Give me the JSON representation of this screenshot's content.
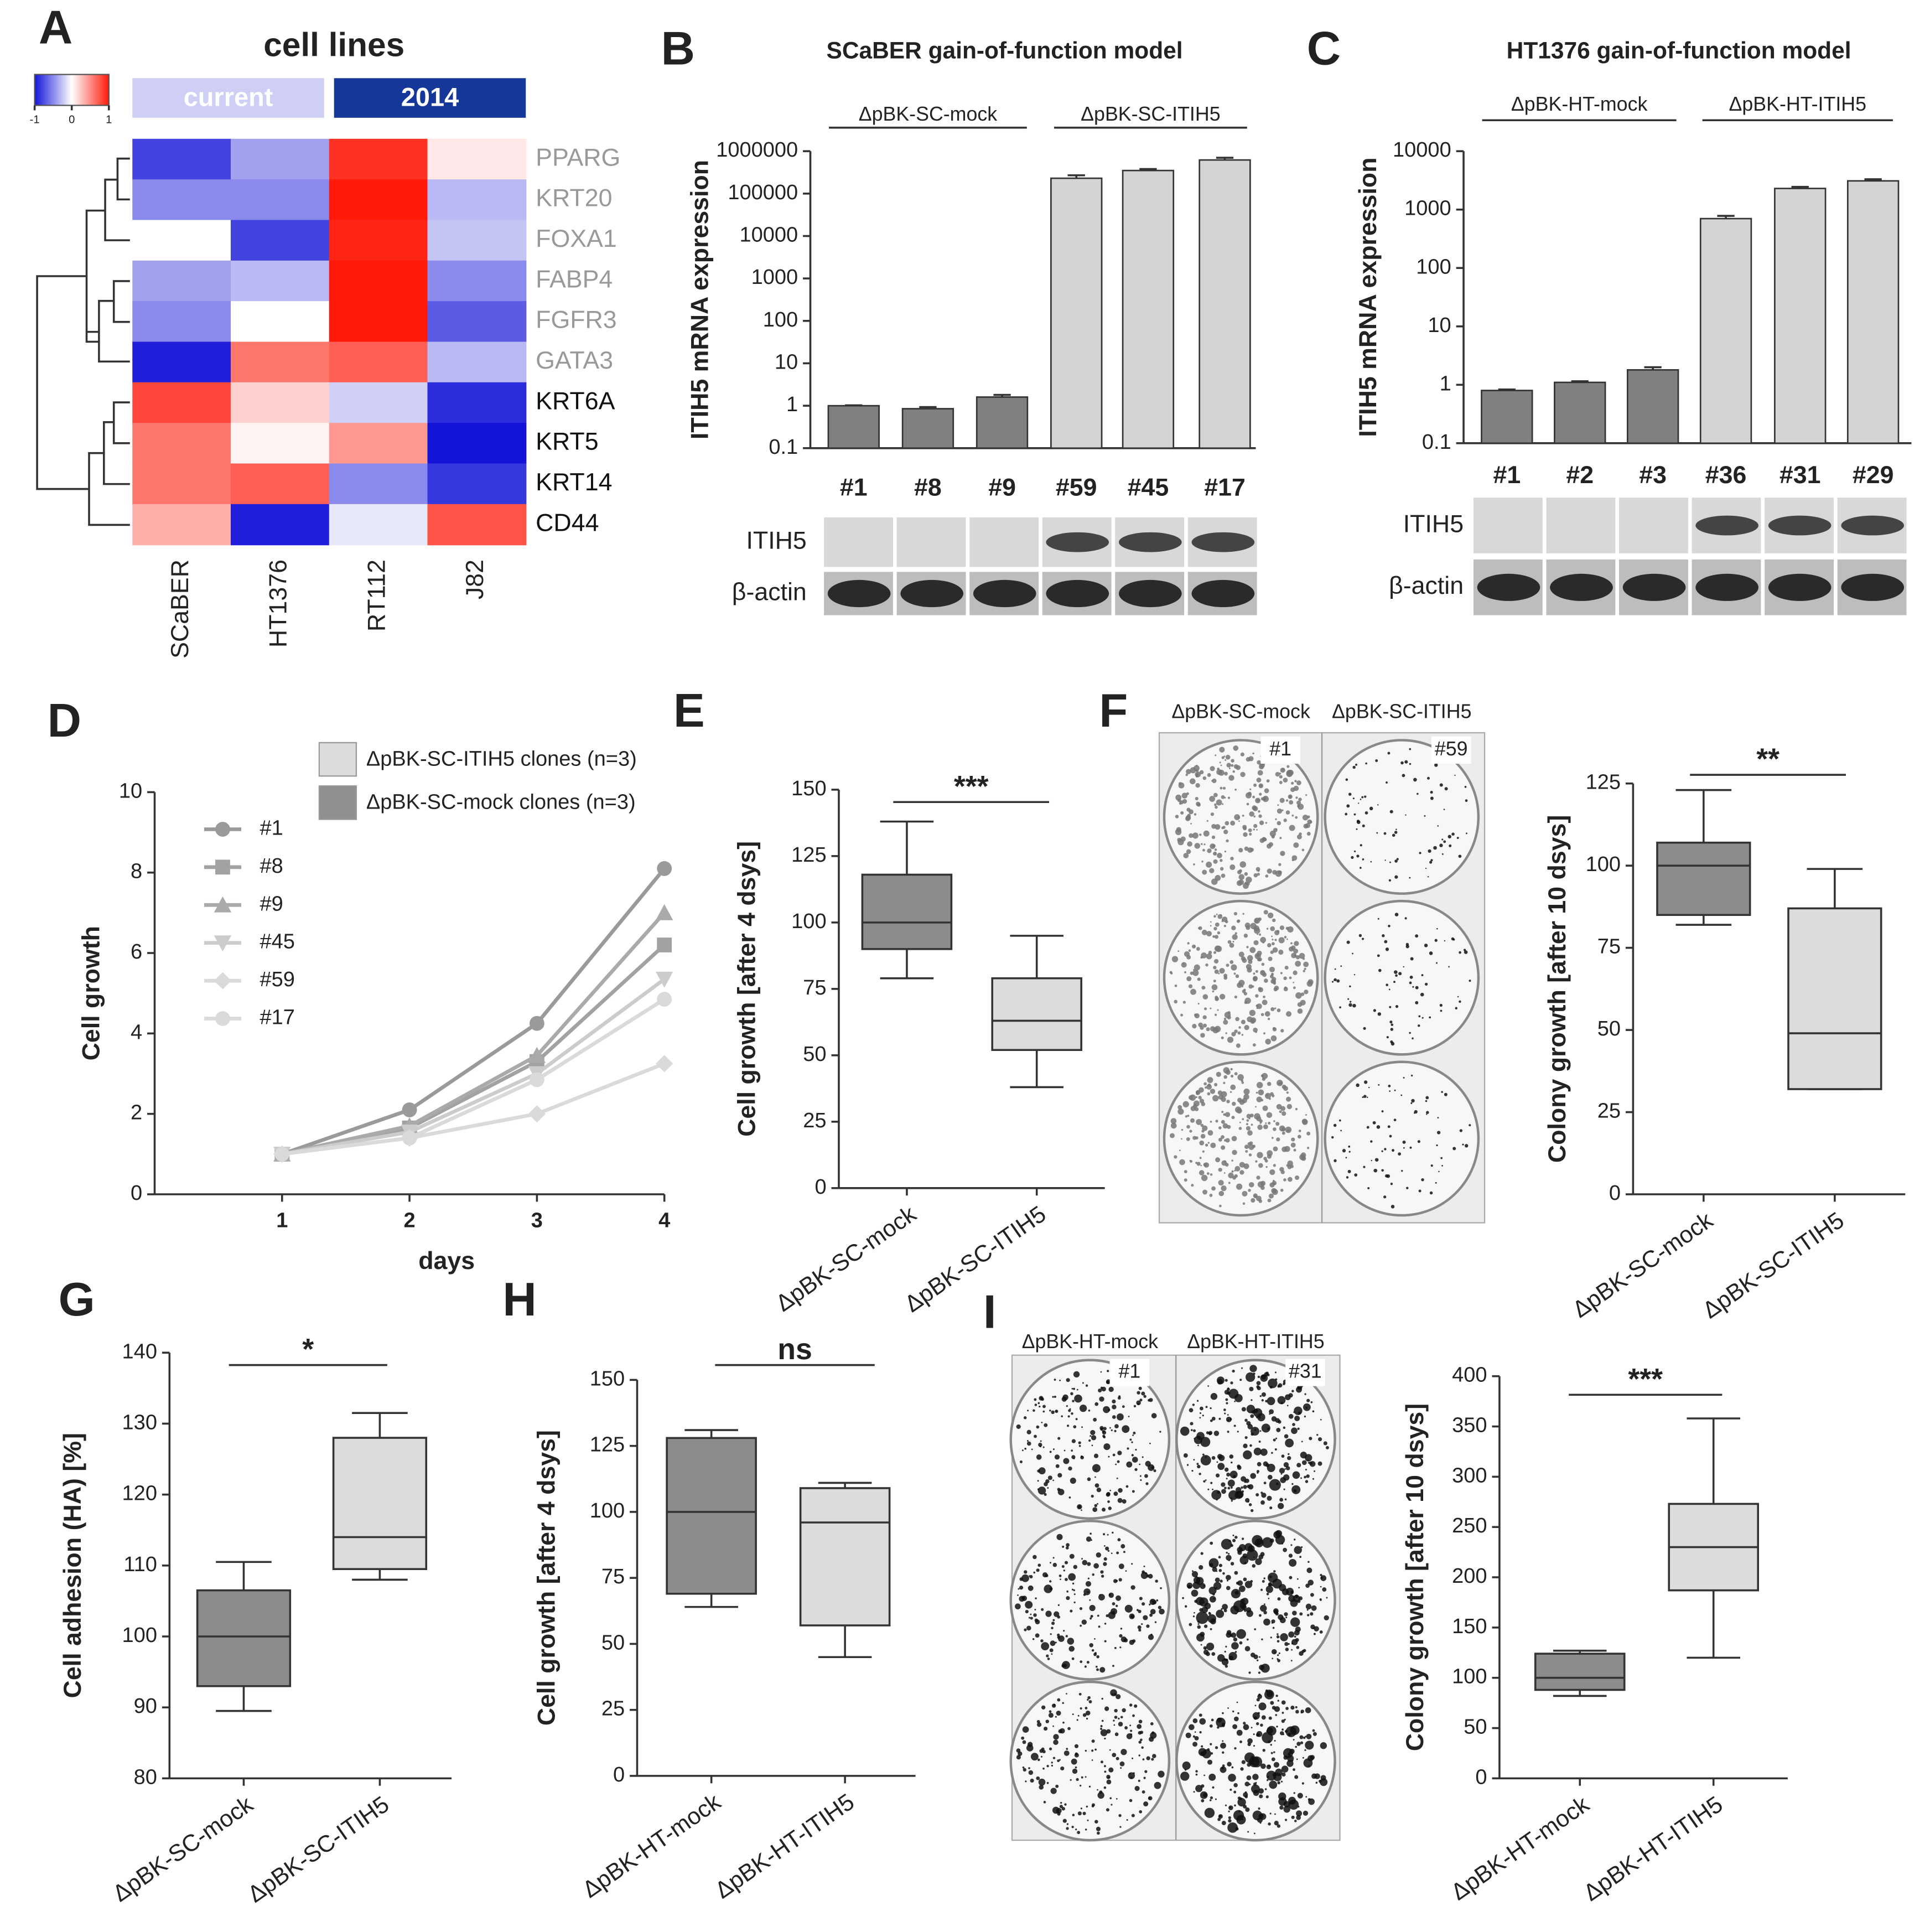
{
  "chart_data": [
    {
      "type": "heatmap",
      "panel": "A",
      "title": "cell lines",
      "column_groups": [
        {
          "name": "current",
          "span": 2,
          "color": "#cfcff5"
        },
        {
          "name": "2014",
          "span": 2,
          "color": "#16379a"
        }
      ],
      "colorbar_ticks": [
        -1,
        0,
        1
      ],
      "colors": [
        "#1414d8",
        "#ffffff",
        "#ff1a0a"
      ],
      "categories": [
        "SCaBER",
        "HT1376",
        "RT112",
        "J82"
      ],
      "rows": [
        "PPARG",
        "KRT20",
        "FOXA1",
        "FABP4",
        "FGFR3",
        "GATA3",
        "KRT6A",
        "KRT5",
        "KRT14",
        "CD44"
      ],
      "row_label_colors": [
        "#999999",
        "#999999",
        "#999999",
        "#999999",
        "#999999",
        "#999999",
        "#111111",
        "#111111",
        "#111111",
        "#111111"
      ],
      "values": [
        [
          -0.8,
          -0.4,
          0.9,
          0.1
        ],
        [
          -0.5,
          -0.5,
          1.0,
          -0.3
        ],
        [
          0.0,
          -0.8,
          0.95,
          -0.25
        ],
        [
          -0.4,
          -0.3,
          1.0,
          -0.5
        ],
        [
          -0.5,
          0.0,
          1.0,
          -0.7
        ],
        [
          -0.95,
          0.6,
          0.7,
          -0.3
        ],
        [
          0.8,
          0.2,
          -0.2,
          -0.9
        ],
        [
          0.6,
          0.05,
          0.45,
          -1.0
        ],
        [
          0.6,
          0.7,
          -0.5,
          -0.85
        ],
        [
          0.35,
          -0.95,
          -0.1,
          0.75
        ]
      ]
    },
    {
      "type": "bar",
      "panel": "B",
      "title": "SCaBER gain-of-function model",
      "groups": [
        "ΔpBK-SC-mock",
        "ΔpBK-SC-ITIH5"
      ],
      "ylabel": "ITIH5 mRNA expression",
      "log_scale": true,
      "ylim": [
        0.1,
        1000000
      ],
      "yticks": [
        0.1,
        1,
        10,
        100,
        1000,
        10000,
        100000,
        1000000
      ],
      "categories": [
        "#1",
        "#8",
        "#9",
        "#59",
        "#45",
        "#17"
      ],
      "values": [
        1,
        0.85,
        1.6,
        230000,
        350000,
        620000
      ],
      "errors": [
        0.02,
        0.08,
        0.2,
        40000,
        30000,
        80000
      ],
      "colors": [
        "#808080",
        "#808080",
        "#808080",
        "#d4d4d4",
        "#d4d4d4",
        "#d4d4d4"
      ],
      "blot_labels": [
        "ITIH5",
        "β-actin"
      ]
    },
    {
      "type": "bar",
      "panel": "C",
      "title": "HT1376 gain-of-function model",
      "groups": [
        "ΔpBK-HT-mock",
        "ΔpBK-HT-ITIH5"
      ],
      "ylabel": "ITIH5 mRNA expression",
      "log_scale": true,
      "ylim": [
        0.1,
        10000
      ],
      "yticks": [
        0.1,
        1,
        10,
        100,
        1000,
        10000
      ],
      "categories": [
        "#1",
        "#2",
        "#3",
        "#36",
        "#31",
        "#29"
      ],
      "values": [
        0.8,
        1.1,
        1.8,
        700,
        2300,
        3100
      ],
      "errors": [
        0.03,
        0.05,
        0.2,
        80,
        150,
        200
      ],
      "colors": [
        "#808080",
        "#808080",
        "#808080",
        "#d4d4d4",
        "#d4d4d4",
        "#d4d4d4"
      ],
      "blot_labels": [
        "ITIH5",
        "β-actin"
      ]
    },
    {
      "type": "line",
      "panel": "D",
      "xlabel": "days",
      "ylabel": "Cell growth",
      "group_legend": [
        {
          "name": "ΔpBK-SC-ITIH5 clones (n=3)",
          "color": "#dcdcdc"
        },
        {
          "name": "ΔpBK-SC-mock clones (n=3)",
          "color": "#909090"
        }
      ],
      "x": [
        1,
        2,
        3,
        4
      ],
      "xlim": [
        0,
        4
      ],
      "xticks": [
        1,
        2,
        3,
        4
      ],
      "ylim": [
        0,
        10
      ],
      "yticks": [
        0,
        2,
        4,
        6,
        8,
        10
      ],
      "series": [
        {
          "name": "#1",
          "color": "#9a9a9a",
          "marker": "circle",
          "values": [
            1,
            2.1,
            4.25,
            8.1
          ]
        },
        {
          "name": "#8",
          "color": "#a2a2a2",
          "marker": "square",
          "values": [
            1,
            1.65,
            3.3,
            6.2
          ]
        },
        {
          "name": "#9",
          "color": "#aaaaaa",
          "marker": "triangle",
          "values": [
            1,
            1.7,
            3.45,
            7.0
          ]
        },
        {
          "name": "#45",
          "color": "#cccccc",
          "marker": "triangle-down",
          "values": [
            1,
            1.55,
            3.0,
            5.35
          ]
        },
        {
          "name": "#59",
          "color": "#dadada",
          "marker": "diamond",
          "values": [
            1,
            1.4,
            2.0,
            3.25
          ]
        },
        {
          "name": "#17",
          "color": "#dadada",
          "marker": "circle",
          "values": [
            1,
            1.4,
            2.85,
            4.85
          ]
        }
      ]
    },
    {
      "type": "box",
      "panel": "E",
      "ylabel": "Cell growth [after 4 dsys]",
      "significance": "***",
      "ylim": [
        0,
        150
      ],
      "yticks": [
        0,
        25,
        50,
        75,
        100,
        125,
        150
      ],
      "categories": [
        "ΔpBK-SC-mock",
        "ΔpBK-SC-ITIH5"
      ],
      "colors": [
        "#8c8c8c",
        "#dcdcdc"
      ],
      "boxes": [
        {
          "min": 79,
          "q1": 90,
          "median": 100,
          "q3": 118,
          "max": 138
        },
        {
          "min": 38,
          "q1": 52,
          "median": 63,
          "q3": 79,
          "max": 95
        }
      ]
    },
    {
      "type": "box",
      "panel": "F",
      "ylabel": "Colony growth [after 10 dsys]",
      "significance": "**",
      "ylim": [
        0,
        125
      ],
      "yticks": [
        0,
        25,
        50,
        75,
        100,
        125
      ],
      "plate_labels": [
        "ΔpBK-SC-mock",
        "ΔpBK-SC-ITIH5"
      ],
      "plate_clones": [
        "#1",
        "#59"
      ],
      "categories": [
        "ΔpBK-SC-mock",
        "ΔpBK-SC-ITIH5"
      ],
      "colors": [
        "#8c8c8c",
        "#dcdcdc"
      ],
      "boxes": [
        {
          "min": 82,
          "q1": 85,
          "median": 100,
          "q3": 107,
          "max": 123
        },
        {
          "min": 32,
          "q1": 32,
          "median": 49,
          "q3": 87,
          "max": 99
        }
      ]
    },
    {
      "type": "box",
      "panel": "G",
      "ylabel": "Cell adhesion (HA) [%]",
      "significance": "*",
      "ylim": [
        80,
        140
      ],
      "yticks": [
        80,
        90,
        100,
        110,
        120,
        130,
        140
      ],
      "categories": [
        "ΔpBK-SC-mock",
        "ΔpBK-SC-ITIH5"
      ],
      "colors": [
        "#8c8c8c",
        "#dcdcdc"
      ],
      "boxes": [
        {
          "min": 89.5,
          "q1": 93,
          "median": 100,
          "q3": 106.5,
          "max": 110.5
        },
        {
          "min": 108,
          "q1": 109.5,
          "median": 114,
          "q3": 128,
          "max": 131.5
        }
      ]
    },
    {
      "type": "box",
      "panel": "H",
      "ylabel": "Cell growth [after 4 dsys]",
      "significance": "ns",
      "ylim": [
        0,
        150
      ],
      "yticks": [
        0,
        25,
        50,
        75,
        100,
        125,
        150
      ],
      "categories": [
        "ΔpBK-HT-mock",
        "ΔpBK-HT-ITIH5"
      ],
      "colors": [
        "#8c8c8c",
        "#dcdcdc"
      ],
      "boxes": [
        {
          "min": 64,
          "q1": 69,
          "median": 100,
          "q3": 128,
          "max": 131
        },
        {
          "min": 45,
          "q1": 57,
          "median": 96,
          "q3": 109,
          "max": 111
        }
      ]
    },
    {
      "type": "box",
      "panel": "I",
      "ylabel": "Colony growth [after 10 dsys]",
      "significance": "***",
      "ylim": [
        0,
        400
      ],
      "yticks": [
        0,
        50,
        100,
        150,
        200,
        250,
        300,
        350,
        400
      ],
      "plate_labels": [
        "ΔpBK-HT-mock",
        "ΔpBK-HT-ITIH5"
      ],
      "plate_clones": [
        "#1",
        "#31"
      ],
      "categories": [
        "ΔpBK-HT-mock",
        "ΔpBK-HT-ITIH5"
      ],
      "colors": [
        "#8c8c8c",
        "#dcdcdc"
      ],
      "boxes": [
        {
          "min": 82,
          "q1": 88,
          "median": 100,
          "q3": 124,
          "max": 127
        },
        {
          "min": 120,
          "q1": 187,
          "median": 230,
          "q3": 273,
          "max": 358
        }
      ]
    }
  ]
}
